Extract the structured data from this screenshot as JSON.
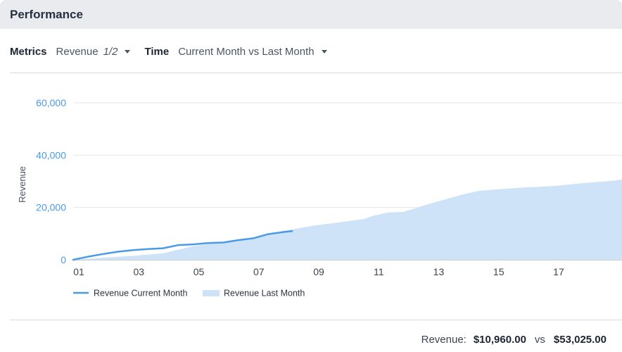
{
  "header": {
    "title": "Performance"
  },
  "controls": {
    "metrics_label": "Metrics",
    "metrics_value": "Revenue",
    "metrics_sub": "1/2",
    "time_label": "Time",
    "time_value": "Current Month vs Last Month"
  },
  "summary": {
    "label": "Revenue:",
    "current": "$10,960.00",
    "vs": "vs",
    "previous": "$53,025.00"
  },
  "colors": {
    "current_line": "#4a9be6",
    "last_area": "#cfe3f8",
    "grid": "#e4e7eb"
  },
  "chart_data": {
    "type": "line",
    "ylabel": "Revenue",
    "xlabel": "",
    "ylim": [
      0,
      60000
    ],
    "yticks": [
      0,
      20000,
      40000,
      60000
    ],
    "ytick_labels": [
      "0",
      "20,000",
      "40,000",
      "60,000"
    ],
    "xticks": [
      1,
      3,
      5,
      7,
      9,
      11,
      13,
      15,
      17
    ],
    "xtick_labels": [
      "01",
      "03",
      "05",
      "07",
      "09",
      "11",
      "13",
      "15",
      "17"
    ],
    "xlim": [
      1,
      19.3
    ],
    "grid": true,
    "legend_position": "bottom-left",
    "series": [
      {
        "name": "Revenue Current Month",
        "style": "line",
        "x": [
          1,
          1.5,
          2,
          2.5,
          3,
          3.5,
          4,
          4.5,
          5,
          5.5,
          6,
          6.5,
          7,
          7.5,
          8,
          8.3
        ],
        "values": [
          0,
          1200,
          2200,
          3100,
          3700,
          4100,
          4400,
          5600,
          5900,
          6400,
          6600,
          7500,
          8200,
          9800,
          10600,
          10960
        ]
      },
      {
        "name": "Revenue Last Month",
        "style": "area",
        "x": [
          1,
          2,
          3,
          4,
          5,
          6,
          7,
          8,
          9,
          10,
          10.7,
          11,
          11.5,
          12,
          13,
          14,
          14.5,
          15,
          16,
          17,
          18,
          19,
          19.3
        ],
        "values": [
          0,
          800,
          1500,
          2500,
          5200,
          6800,
          8300,
          11000,
          13000,
          14500,
          15600,
          16800,
          18100,
          18300,
          21800,
          25000,
          26300,
          26800,
          27600,
          28200,
          29300,
          30200,
          30700
        ]
      }
    ]
  }
}
